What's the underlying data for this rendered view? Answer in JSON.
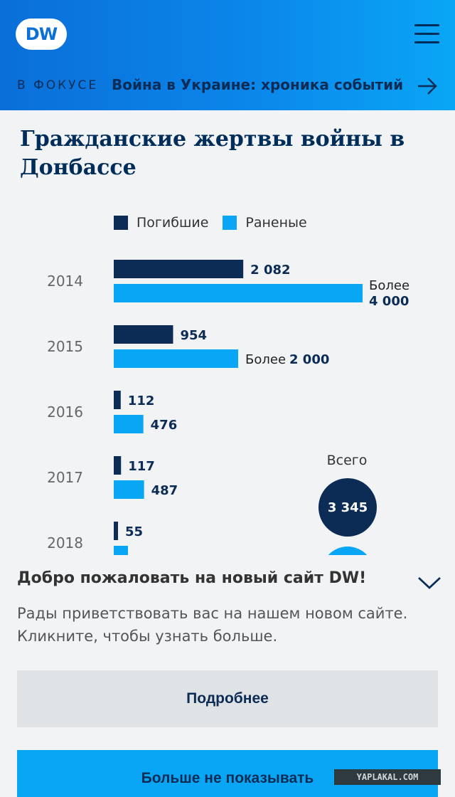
{
  "header": {
    "logo_text": "DW",
    "focus_label": "В ФОКУСЕ",
    "focus_link": "Война в Украине: хроника событий",
    "brand_color": "#0a86ea"
  },
  "article": {
    "title": "Гражданские жертвы войны в Донбассе"
  },
  "chart_data": {
    "type": "bar",
    "orientation": "horizontal",
    "categories": [
      "2014",
      "2015",
      "2016",
      "2017",
      "2018"
    ],
    "series": [
      {
        "name": "Погибшие",
        "color": "#0c2c55",
        "values": [
          2082,
          954,
          112,
          117,
          55
        ]
      },
      {
        "name": "Раненые",
        "color": "#0aa6f6",
        "values": [
          4000,
          2000,
          476,
          487,
          null
        ]
      }
    ],
    "data_labels": {
      "killed": [
        "2 082",
        "954",
        "112",
        "117",
        "55"
      ],
      "wounded": [
        {
          "prefix": "Более",
          "value": "4 000"
        },
        {
          "prefix": "Более",
          "value": "2 000"
        },
        {
          "prefix": "",
          "value": "476"
        },
        {
          "prefix": "",
          "value": "487"
        },
        {
          "prefix": "",
          "value": ""
        }
      ]
    },
    "total": {
      "label": "Всего",
      "value": "3 345"
    }
  },
  "overlay": {
    "title": "Добро пожаловать на новый сайт DW!",
    "text": "Рады приветствовать вас на нашем новом сайте. Кликните, чтобы узнать больше.",
    "more_button": "Подробнее",
    "hide_button": "Больше не показывать"
  },
  "watermark": "YAPLAKAL.COM"
}
